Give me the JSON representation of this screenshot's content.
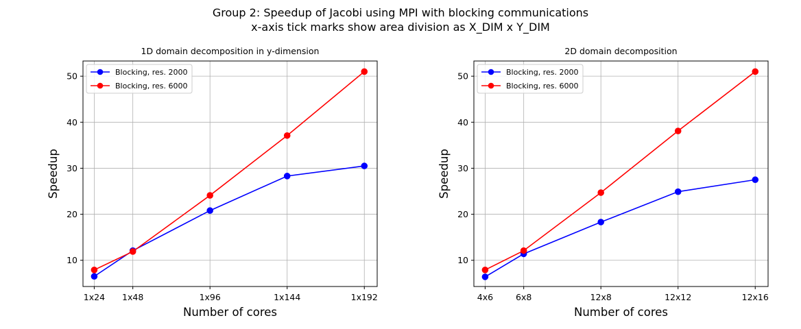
{
  "figure": {
    "title_line1": "Group 2: Speedup of Jacobi using MPI with blocking communications",
    "title_line2": "x-axis tick marks show area division as X_DIM x Y_DIM"
  },
  "chart_data": [
    {
      "type": "line",
      "title": "1D domain decomposition in y-dimension",
      "xlabel": "Number of cores",
      "ylabel": "Speedup",
      "x": [
        24,
        48,
        96,
        144,
        192
      ],
      "xticklabels": [
        "1x24",
        "1x48",
        "1x96",
        "1x144",
        "1x192"
      ],
      "xlim": [
        17,
        200
      ],
      "ylim": [
        4.3,
        53.3
      ],
      "yticks": [
        10,
        20,
        30,
        40,
        50
      ],
      "grid": true,
      "legend_position": "upper-left",
      "series": [
        {
          "name": "Blocking, res. 2000",
          "color": "#0000ff",
          "marker": "circle",
          "values": [
            6.5,
            12.1,
            20.8,
            28.3,
            30.5
          ]
        },
        {
          "name": "Blocking, res. 6000",
          "color": "#ff0000",
          "marker": "circle",
          "values": [
            7.9,
            11.9,
            24.1,
            37.1,
            51.0
          ]
        }
      ]
    },
    {
      "type": "line",
      "title": "2D domain decomposition",
      "xlabel": "Number of cores",
      "ylabel": "Speedup",
      "x": [
        24,
        48,
        96,
        144,
        192
      ],
      "xticklabels": [
        "4x6",
        "6x8",
        "12x8",
        "12x12",
        "12x16"
      ],
      "xlim": [
        17,
        200
      ],
      "ylim": [
        4.3,
        53.3
      ],
      "yticks": [
        10,
        20,
        30,
        40,
        50
      ],
      "grid": true,
      "legend_position": "upper-left",
      "series": [
        {
          "name": "Blocking, res. 2000",
          "color": "#0000ff",
          "marker": "circle",
          "values": [
            6.4,
            11.4,
            18.3,
            24.9,
            27.5
          ]
        },
        {
          "name": "Blocking, res. 6000",
          "color": "#ff0000",
          "marker": "circle",
          "values": [
            7.9,
            12.1,
            24.7,
            38.1,
            51.0
          ]
        }
      ]
    }
  ]
}
